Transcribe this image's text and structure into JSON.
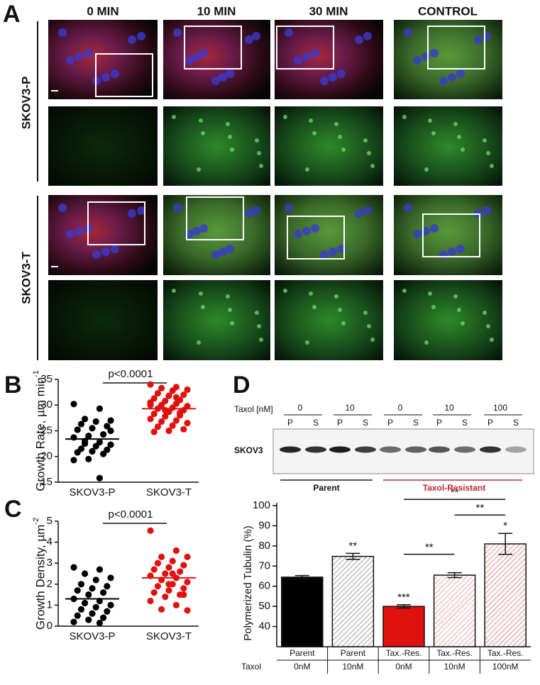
{
  "panel_a": {
    "label": "A",
    "columns": [
      "0 MIN",
      "10 MIN",
      "30 MIN",
      "CONTROL"
    ],
    "rows": [
      "SKOV3-P",
      "SKOV3-T"
    ]
  },
  "blot": {
    "label": "D",
    "axis_label": "Taxol [nM]",
    "doses": [
      "0",
      "10",
      "0",
      "10",
      "100"
    ],
    "fractions": [
      "P",
      "S"
    ],
    "row_label": "SKOV3",
    "groups": [
      {
        "name": "Parent",
        "color": "#222222"
      },
      {
        "name": "Taxol-Resistant",
        "color": "#c1272d"
      }
    ]
  },
  "chart_data": [
    {
      "label": "B",
      "type": "strip",
      "ylabel": "Growth Rate, µm min",
      "ylabel_sup": "-1",
      "annotation": "p<0.0001",
      "categories": [
        "SKOV3-P",
        "SKOV3-T"
      ],
      "series": [
        {
          "color": "#000000",
          "mean": 23.4,
          "values": [
            30.2,
            29.3,
            27.3,
            27.0,
            26.8,
            26.3,
            25.9,
            25.5,
            25.2,
            24.3,
            24.0,
            23.7,
            22.8,
            22.5,
            22.3,
            22.0,
            21.5,
            21.3,
            21.0,
            20.8,
            20.5,
            19.5,
            19.3,
            15.8,
            23.0,
            25.0
          ]
        },
        {
          "color": "#e0120f",
          "mean": 29.3,
          "values": [
            34.0,
            33.5,
            33.3,
            33.0,
            32.8,
            32.3,
            32.0,
            31.8,
            31.3,
            31.0,
            30.8,
            30.5,
            30.3,
            30.0,
            29.8,
            29.5,
            29.3,
            29.0,
            28.7,
            28.3,
            28.0,
            27.8,
            27.3,
            27.0,
            26.8,
            26.5,
            26.0,
            25.8,
            25.3,
            25.0,
            24.8,
            28.5,
            29.0,
            30.0,
            31.5
          ]
        }
      ],
      "ylim": [
        15,
        35
      ],
      "yticks": [
        15,
        20,
        25,
        30,
        35
      ]
    },
    {
      "label": "C",
      "type": "strip",
      "ylabel": "Growth Density, µm",
      "ylabel_sup": "-2",
      "annotation": "p<0.0001",
      "categories": [
        "SKOV3-P",
        "SKOV3-T"
      ],
      "series": [
        {
          "color": "#000000",
          "mean": 1.3,
          "values": [
            2.8,
            2.7,
            2.5,
            2.3,
            2.2,
            2.0,
            1.9,
            1.8,
            1.7,
            1.6,
            1.5,
            1.3,
            1.2,
            1.1,
            1.0,
            0.9,
            0.8,
            0.7,
            0.6,
            0.5,
            0.4,
            0.3,
            0.2,
            0.15
          ]
        },
        {
          "color": "#e0120f",
          "mean": 2.3,
          "values": [
            4.55,
            3.6,
            3.3,
            3.3,
            3.1,
            3.0,
            2.9,
            2.8,
            2.7,
            2.6,
            2.5,
            2.4,
            2.3,
            2.2,
            2.1,
            2.0,
            1.9,
            1.8,
            1.7,
            1.6,
            1.5,
            1.4,
            1.2,
            1.0,
            0.8,
            0.75,
            2.5,
            3.0,
            1.5,
            2.0
          ]
        }
      ],
      "ylim": [
        0,
        5
      ],
      "yticks": [
        0,
        1,
        2,
        3,
        4,
        5
      ]
    },
    {
      "type": "bar",
      "ylabel": "Polymerized Tubulin (%)",
      "categories": [
        "Parent",
        "Parent",
        "Tax.-Res.",
        "Tax.-Res.",
        "Tax.-Res."
      ],
      "sublabel_title": "Taxol",
      "sublabels": [
        "0nM",
        "10nM",
        "0nM",
        "10nM",
        "100nM"
      ],
      "values": [
        64.5,
        74.8,
        50,
        65.5,
        81
      ],
      "errors": [
        0.8,
        1.5,
        0.8,
        1.2,
        5.2
      ],
      "colors": [
        "#000000",
        "#888888",
        "#e0120f",
        "#e88a8a",
        "#e06a6a"
      ],
      "hatched": [
        false,
        true,
        false,
        true,
        true
      ],
      "stars": [
        null,
        "**",
        "***",
        null,
        "*"
      ],
      "brackets": [
        {
          "from": 2,
          "to": 3,
          "label": "**"
        },
        {
          "from": 3,
          "to": 4,
          "label": "**"
        },
        {
          "from": 2,
          "to": 4,
          "label": "**"
        }
      ],
      "ylim": [
        30,
        100
      ],
      "yticks": [
        40,
        50,
        60,
        70,
        80,
        90,
        100
      ]
    }
  ]
}
